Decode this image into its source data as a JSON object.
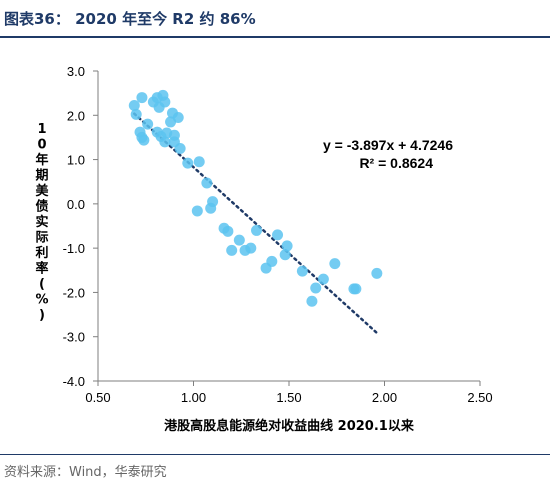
{
  "header": {
    "title": "图表36：  2020 年至今 R2 约 86%"
  },
  "footer": {
    "source": "资料来源：Wind，华泰研究"
  },
  "colors": {
    "points": "#5cc3f0",
    "trendline": "#1f3a67",
    "title": "#1f3a67"
  },
  "chart_data": {
    "type": "scatter",
    "title": "",
    "xlabel": "港股高股息能源绝对收益曲线 2020.1以来",
    "ylabel": "10年期美债实际利率(%)",
    "xlim": [
      0.5,
      2.5
    ],
    "ylim": [
      -4.0,
      3.0
    ],
    "xticks": [
      0.5,
      1.0,
      1.5,
      2.0,
      2.5
    ],
    "xtick_labels": [
      "0.50",
      "1.00",
      "1.50",
      "2.00",
      "2.50"
    ],
    "yticks": [
      3.0,
      2.0,
      1.0,
      0.0,
      -1.0,
      -2.0,
      -3.0,
      -4.0
    ],
    "ytick_labels": [
      "3.0",
      "2.0",
      "1.0",
      "0.0",
      "-1.0",
      "-2.0",
      "-3.0",
      "-4.0"
    ],
    "grid": false,
    "points": [
      {
        "x": 0.69,
        "y": 2.22
      },
      {
        "x": 0.7,
        "y": 2.02
      },
      {
        "x": 0.73,
        "y": 2.4
      },
      {
        "x": 0.72,
        "y": 1.62
      },
      {
        "x": 0.73,
        "y": 1.5
      },
      {
        "x": 0.74,
        "y": 1.44
      },
      {
        "x": 0.76,
        "y": 1.8
      },
      {
        "x": 0.79,
        "y": 2.3
      },
      {
        "x": 0.81,
        "y": 2.4
      },
      {
        "x": 0.82,
        "y": 2.18
      },
      {
        "x": 0.84,
        "y": 2.45
      },
      {
        "x": 0.85,
        "y": 2.3
      },
      {
        "x": 0.81,
        "y": 1.62
      },
      {
        "x": 0.83,
        "y": 1.52
      },
      {
        "x": 0.85,
        "y": 1.4
      },
      {
        "x": 0.86,
        "y": 1.6
      },
      {
        "x": 0.88,
        "y": 1.85
      },
      {
        "x": 0.89,
        "y": 2.05
      },
      {
        "x": 0.9,
        "y": 1.4
      },
      {
        "x": 0.9,
        "y": 1.55
      },
      {
        "x": 0.92,
        "y": 1.95
      },
      {
        "x": 0.93,
        "y": 1.25
      },
      {
        "x": 0.97,
        "y": 0.92
      },
      {
        "x": 1.03,
        "y": 0.95
      },
      {
        "x": 1.07,
        "y": 0.47
      },
      {
        "x": 1.1,
        "y": 0.05
      },
      {
        "x": 1.09,
        "y": -0.1
      },
      {
        "x": 1.02,
        "y": -0.16
      },
      {
        "x": 1.16,
        "y": -0.55
      },
      {
        "x": 1.18,
        "y": -0.62
      },
      {
        "x": 1.2,
        "y": -1.05
      },
      {
        "x": 1.24,
        "y": -0.82
      },
      {
        "x": 1.27,
        "y": -1.05
      },
      {
        "x": 1.3,
        "y": -1.0
      },
      {
        "x": 1.33,
        "y": -0.6
      },
      {
        "x": 1.38,
        "y": -1.45
      },
      {
        "x": 1.41,
        "y": -1.3
      },
      {
        "x": 1.44,
        "y": -0.7
      },
      {
        "x": 1.48,
        "y": -1.15
      },
      {
        "x": 1.49,
        "y": -0.95
      },
      {
        "x": 1.57,
        "y": -1.52
      },
      {
        "x": 1.62,
        "y": -2.2
      },
      {
        "x": 1.64,
        "y": -1.9
      },
      {
        "x": 1.68,
        "y": -1.7
      },
      {
        "x": 1.74,
        "y": -1.35
      },
      {
        "x": 1.84,
        "y": -1.92
      },
      {
        "x": 1.85,
        "y": -1.92
      },
      {
        "x": 1.96,
        "y": -1.57
      }
    ],
    "trendline": {
      "slope": -3.897,
      "intercept": 4.7246,
      "x_range": [
        0.69,
        1.96
      ],
      "style": "dotted"
    },
    "annotations": {
      "equation": "y = -3.897x + 4.7246",
      "r_squared": "R² = 0.8624"
    }
  }
}
